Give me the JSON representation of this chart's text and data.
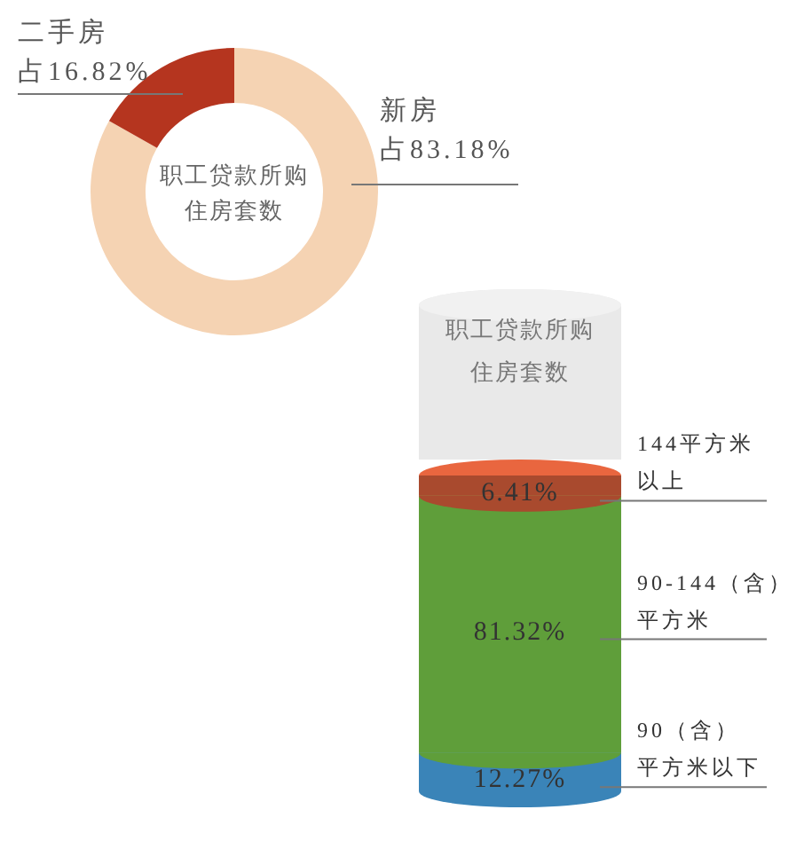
{
  "chart_data": [
    {
      "type": "donut",
      "title": "职工贷款所购住房套数",
      "categories": [
        "新房",
        "二手房"
      ],
      "values": [
        83.18,
        16.82
      ],
      "colors": [
        "#f5d3b3",
        "#b5351f"
      ],
      "value_labels": [
        "占83.18%",
        "占16.82%"
      ]
    },
    {
      "type": "bar",
      "title": "职工贷款所购住房套数",
      "categories": [
        null
      ],
      "stacked": true,
      "tick_labels": false,
      "series": [
        {
          "name": "90（含）平方米以下",
          "color": "#3a84b8",
          "values": [
            12.27
          ],
          "value_labels": [
            "12.27%"
          ]
        },
        {
          "name": "90-144（含）平方米",
          "color": "#5f9e3a",
          "values": [
            81.32
          ],
          "value_labels": [
            "81.32%"
          ]
        },
        {
          "name": "144平方米以上",
          "color": "#a94a2e",
          "values": [
            6.41
          ],
          "value_labels": [
            "6.41%"
          ]
        }
      ]
    }
  ]
}
